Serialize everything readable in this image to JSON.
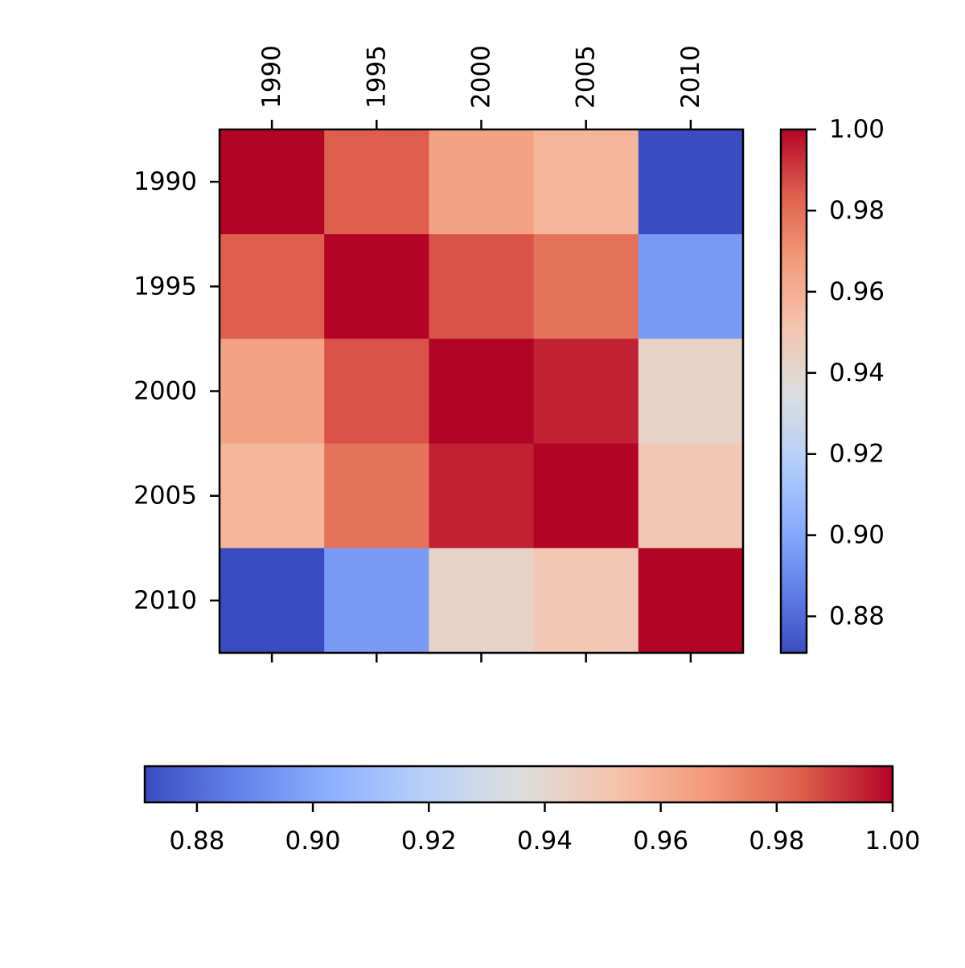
{
  "chart_data": {
    "type": "heatmap",
    "title": "",
    "xlabel": "",
    "ylabel": "",
    "x_categories": [
      "1990",
      "1995",
      "2000",
      "2005",
      "2010"
    ],
    "y_categories": [
      "1990",
      "1995",
      "2000",
      "2005",
      "2010"
    ],
    "values": [
      [
        1.0,
        0.984,
        0.965,
        0.957,
        0.871
      ],
      [
        0.984,
        1.0,
        0.986,
        0.979,
        0.896
      ],
      [
        0.965,
        0.986,
        1.0,
        0.995,
        0.943
      ],
      [
        0.957,
        0.979,
        0.995,
        1.0,
        0.949
      ],
      [
        0.871,
        0.896,
        0.943,
        0.949,
        1.0
      ]
    ],
    "colormap": "coolwarm",
    "vmin": 0.871,
    "vmax": 1.0,
    "x_tick_position": "top",
    "colorbars": [
      {
        "orientation": "vertical",
        "placement": "right",
        "ticks": [
          "0.88",
          "0.90",
          "0.92",
          "0.94",
          "0.96",
          "0.98",
          "1.00"
        ]
      },
      {
        "orientation": "horizontal",
        "placement": "bottom",
        "ticks": [
          "0.88",
          "0.90",
          "0.92",
          "0.94",
          "0.96",
          "0.98",
          "1.00"
        ]
      }
    ],
    "grid": false,
    "legend": "none"
  }
}
